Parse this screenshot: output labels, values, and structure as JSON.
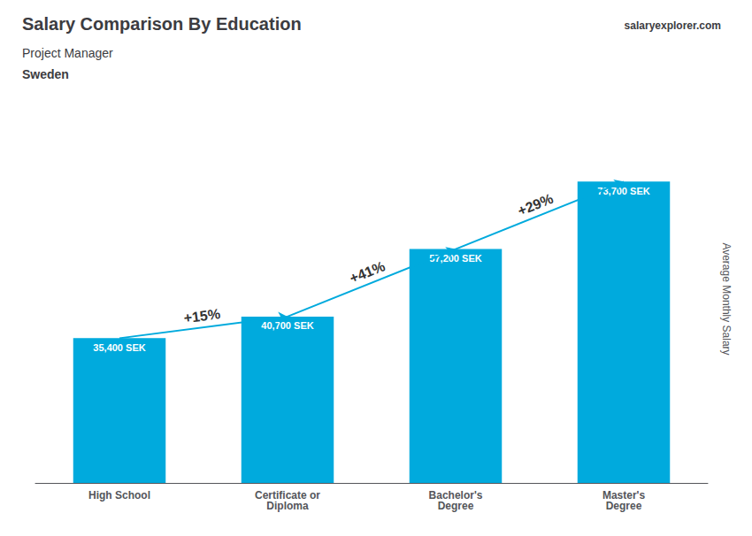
{
  "chart_data": {
    "type": "bar",
    "title": "Salary Comparison By Education",
    "subtitle": "Project Manager",
    "country": "Sweden",
    "watermark": "salaryexplorer.com",
    "ylabel": "Average Monthly Salary",
    "categories": [
      "High School",
      "Certificate or\nDiploma",
      "Bachelor's\nDegree",
      "Master's\nDegree"
    ],
    "values": [
      35400,
      40700,
      57200,
      73700
    ],
    "value_labels": [
      "35,400 SEK",
      "40,700 SEK",
      "57,200 SEK",
      "73,700 SEK"
    ],
    "data_labels": true,
    "annotations": [
      "+15%",
      "+41%",
      "+29%"
    ],
    "color": "#00aadd",
    "ylim": [
      0,
      90000
    ],
    "yticks": [],
    "grid": false,
    "tick_labels": "x"
  }
}
